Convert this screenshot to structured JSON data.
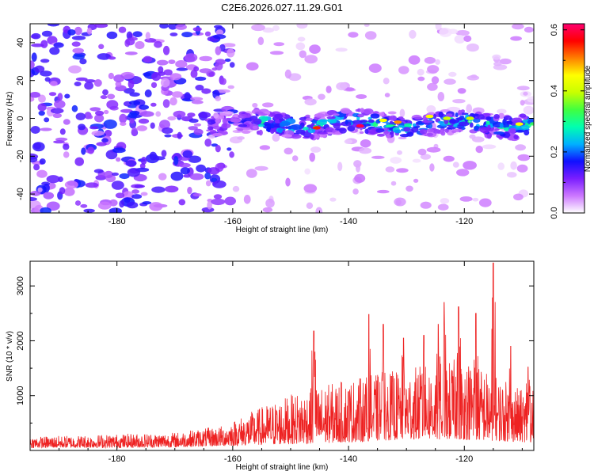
{
  "title": "C2E6.2026.027.11.29.G01",
  "chart_data": [
    {
      "type": "heatmap",
      "title": "C2E6.2026.027.11.29.G01",
      "xlabel": "Height of straight line (km)",
      "ylabel": "Frequency (Hz)",
      "xlim": [
        -195,
        -108
      ],
      "ylim": [
        -50,
        50
      ],
      "xticks": [
        -180,
        -160,
        -140,
        -120
      ],
      "yticks": [
        -40,
        -20,
        0,
        20,
        40
      ],
      "colorbar": {
        "label": "Normalized spectral amplitude",
        "range": [
          0.0,
          0.62
        ],
        "ticks": [
          "0.0",
          "0.2",
          "0.4",
          "0.6"
        ],
        "tick_values": [
          0.0,
          0.2,
          0.4,
          0.6
        ],
        "colors": [
          "#ffffff",
          "#cc77ff",
          "#7a1eff",
          "#1010ff",
          "#00b0ff",
          "#00ffb0",
          "#40ff40",
          "#c8ff00",
          "#ffff00",
          "#ff8000",
          "#ff0000",
          "#ff0070"
        ]
      },
      "features": {
        "noise_region_km": [
          -195,
          -160
        ],
        "signal_band_center_hz": -3,
        "signal_band_halfwidth_hz": 6,
        "signal_start_km": -164
      }
    },
    {
      "type": "line",
      "xlabel": "Height of straight line (km)",
      "ylabel": "SNR (10 * v/v)",
      "xlim": [
        -195,
        -108
      ],
      "ylim": [
        0,
        3450
      ],
      "xticks": [
        -180,
        -160,
        -140,
        -120
      ],
      "yticks": [
        1000,
        2000,
        3000
      ],
      "color": "#ee2222",
      "envelope": [
        {
          "x": -195,
          "low": 50,
          "high": 250
        },
        {
          "x": -180,
          "low": 50,
          "high": 300
        },
        {
          "x": -170,
          "low": 60,
          "high": 330
        },
        {
          "x": -162,
          "low": 80,
          "high": 450
        },
        {
          "x": -155,
          "low": 100,
          "high": 800
        },
        {
          "x": -148,
          "low": 120,
          "high": 1100
        },
        {
          "x": -140,
          "low": 150,
          "high": 1300
        },
        {
          "x": -130,
          "low": 200,
          "high": 1500
        },
        {
          "x": -120,
          "low": 200,
          "high": 1700
        },
        {
          "x": -110,
          "low": 150,
          "high": 1100
        }
      ],
      "peaks": [
        {
          "x": -146.0,
          "y": 2180
        },
        {
          "x": -136.5,
          "y": 2480
        },
        {
          "x": -134.0,
          "y": 2300
        },
        {
          "x": -130.5,
          "y": 2050
        },
        {
          "x": -127.0,
          "y": 2100
        },
        {
          "x": -124.5,
          "y": 2300
        },
        {
          "x": -123.5,
          "y": 2700
        },
        {
          "x": -121.0,
          "y": 2620
        },
        {
          "x": -118.0,
          "y": 2500
        },
        {
          "x": -115.0,
          "y": 3420
        },
        {
          "x": -112.0,
          "y": 1900
        },
        {
          "x": -109.0,
          "y": 1520
        }
      ]
    }
  ]
}
